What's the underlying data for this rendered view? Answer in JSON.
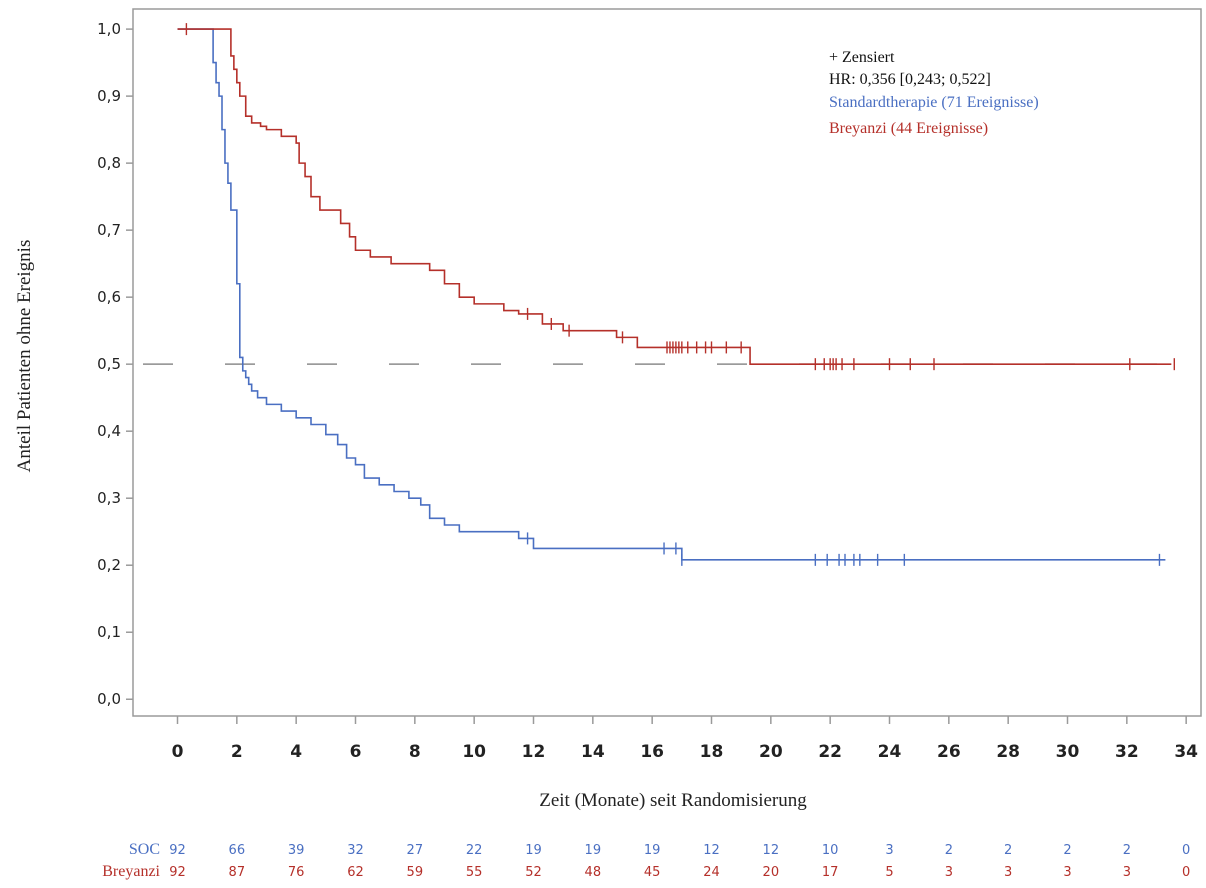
{
  "chart_data": {
    "type": "line",
    "ylabel": "Anteil Patienten ohne Ereignis",
    "xlabel": "Zeit (Monate) seit Randomisierung",
    "xlim": [
      -1.5,
      34.5
    ],
    "ylim": [
      -0.025,
      1.03
    ],
    "x_ticks": [
      0,
      2,
      4,
      6,
      8,
      10,
      12,
      14,
      16,
      18,
      20,
      22,
      24,
      26,
      28,
      30,
      32,
      34
    ],
    "y_ticks": [
      0.0,
      0.1,
      0.2,
      0.3,
      0.4,
      0.5,
      0.6,
      0.7,
      0.8,
      0.9,
      1.0
    ],
    "y_tick_labels": [
      "0,0",
      "0,1",
      "0,2",
      "0,3",
      "0,4",
      "0,5",
      "0,6",
      "0,7",
      "0,8",
      "0,9",
      "1,0"
    ],
    "reference_line_y": 0.5,
    "legend": {
      "placement": "top-right",
      "censored": "+ Zensiert",
      "hr_label": "HR",
      "hr_value": ": 0,356 [0,243; 0,522]",
      "entries": [
        {
          "label": "Standardtherapie (71 Ereignisse)",
          "color": "#4a6fc2"
        },
        {
          "label": "Breyanzi (44 Ereignisse)",
          "color": "#b5302a"
        }
      ]
    },
    "series": [
      {
        "key": "soc",
        "color": "#4a6fc2",
        "x": [
          0,
          1.2,
          1.3,
          1.4,
          1.5,
          1.6,
          1.7,
          1.8,
          2.0,
          2.1,
          2.2,
          2.3,
          2.4,
          2.5,
          2.7,
          3.0,
          3.5,
          4.0,
          4.5,
          5.0,
          5.4,
          5.7,
          6.0,
          6.3,
          6.8,
          7.3,
          7.8,
          8.2,
          8.5,
          9.0,
          9.5,
          11.5,
          12.0,
          17.0
        ],
        "y": [
          1.0,
          0.95,
          0.92,
          0.9,
          0.85,
          0.8,
          0.77,
          0.73,
          0.62,
          0.51,
          0.49,
          0.48,
          0.47,
          0.46,
          0.45,
          0.44,
          0.43,
          0.42,
          0.41,
          0.395,
          0.38,
          0.36,
          0.35,
          0.33,
          0.32,
          0.31,
          0.3,
          0.29,
          0.27,
          0.26,
          0.25,
          0.24,
          0.225,
          0.208
        ],
        "end_x": 33.3,
        "censored_x": [
          11.8,
          16.4,
          16.8,
          17.0,
          21.5,
          21.9,
          22.3,
          22.5,
          22.8,
          23.0,
          23.6,
          24.5,
          33.1
        ]
      },
      {
        "key": "breyanzi",
        "color": "#b5302a",
        "x": [
          0,
          1.8,
          1.9,
          2.0,
          2.1,
          2.3,
          2.5,
          2.8,
          3.0,
          3.5,
          4.0,
          4.1,
          4.3,
          4.5,
          4.8,
          5.5,
          5.8,
          6.0,
          6.5,
          7.2,
          8.5,
          9.0,
          9.5,
          10.0,
          11.0,
          11.5,
          12.3,
          13.0,
          14.8,
          15.5,
          19.3
        ],
        "y": [
          1.0,
          0.96,
          0.94,
          0.92,
          0.9,
          0.87,
          0.86,
          0.855,
          0.85,
          0.84,
          0.83,
          0.8,
          0.78,
          0.75,
          0.73,
          0.71,
          0.69,
          0.67,
          0.66,
          0.65,
          0.64,
          0.62,
          0.6,
          0.59,
          0.58,
          0.575,
          0.56,
          0.55,
          0.54,
          0.525,
          0.5
        ],
        "end_x": 33.5,
        "censored_x": [
          0.3,
          11.8,
          12.6,
          13.2,
          15.0,
          16.5,
          16.6,
          16.7,
          16.8,
          16.9,
          17.0,
          17.2,
          17.5,
          17.8,
          18.0,
          18.5,
          19.0,
          21.5,
          21.8,
          22.0,
          22.1,
          22.2,
          22.4,
          22.8,
          24.0,
          24.7,
          25.5,
          32.1,
          33.6
        ]
      }
    ]
  },
  "risk_table": {
    "times": [
      0,
      2,
      4,
      6,
      8,
      10,
      12,
      14,
      16,
      18,
      20,
      22,
      24,
      26,
      28,
      30,
      32,
      34
    ],
    "rows": [
      {
        "label": "SOC",
        "color": "#4a6fc2",
        "values": [
          "92",
          "66",
          "39",
          "32",
          "27",
          "22",
          "19",
          "19",
          "19",
          "12",
          "12",
          "10",
          "3",
          "2",
          "2",
          "2",
          "2",
          "0"
        ]
      },
      {
        "label": "Breyanzi",
        "color": "#b5302a",
        "values": [
          "92",
          "87",
          "76",
          "62",
          "59",
          "55",
          "52",
          "48",
          "45",
          "24",
          "20",
          "17",
          "5",
          "3",
          "3",
          "3",
          "3",
          "0"
        ]
      }
    ]
  }
}
